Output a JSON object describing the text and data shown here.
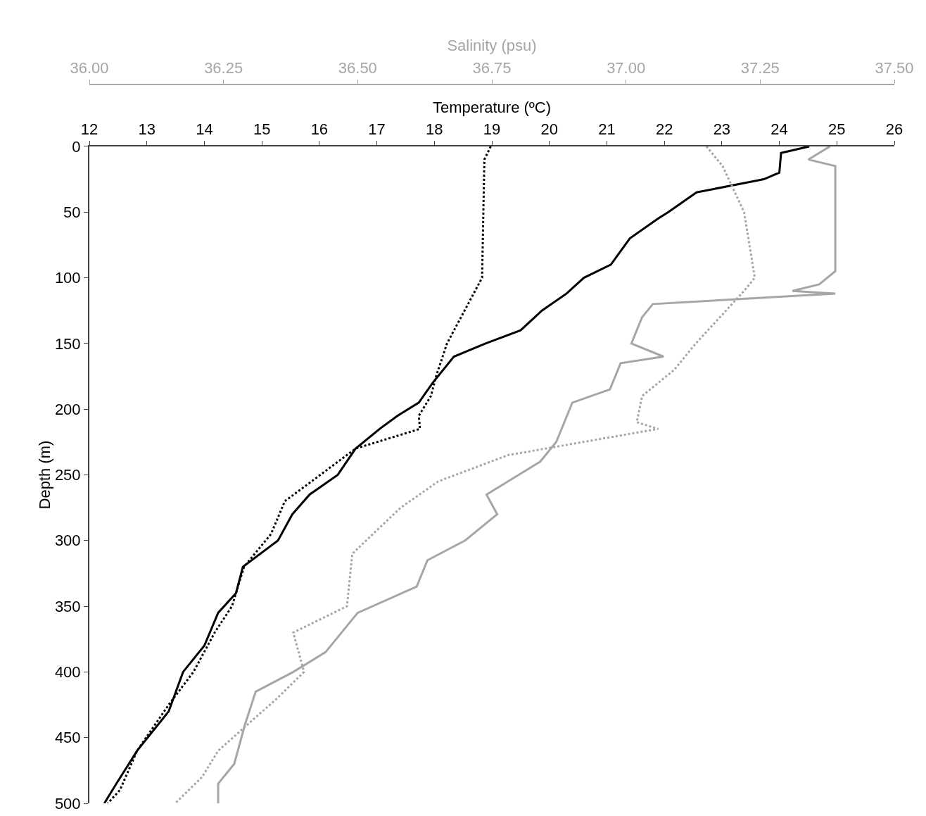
{
  "chart_data": {
    "type": "line",
    "xlabel": "Temperature (ºC)",
    "x2label": "Salinity (psu)",
    "ylabel": "Depth (m)",
    "xlim": [
      12,
      26
    ],
    "xticks": [
      12,
      13,
      14,
      15,
      16,
      17,
      18,
      19,
      20,
      21,
      22,
      23,
      24,
      25,
      26
    ],
    "x2lim": [
      36.0,
      37.5
    ],
    "x2ticks": [
      {
        "value": 36.0,
        "label": "36.00"
      },
      {
        "value": 36.25,
        "label": "36.25"
      },
      {
        "value": 36.5,
        "label": "36.50"
      },
      {
        "value": 36.75,
        "label": "36.75"
      },
      {
        "value": 37.0,
        "label": "37.00"
      },
      {
        "value": 37.25,
        "label": "37.25"
      },
      {
        "value": 37.5,
        "label": "37.50"
      }
    ],
    "ylim": [
      500,
      0
    ],
    "yticks": [
      0,
      50,
      100,
      150,
      200,
      250,
      300,
      350,
      400,
      450,
      500
    ],
    "marker": "none",
    "series": [
      {
        "color": "#000000",
        "line_style": "solid",
        "x": [
          24.52,
          24.03,
          24.0,
          23.73,
          22.56,
          22.07,
          21.89,
          21.4,
          21.07,
          20.6,
          20.3,
          19.87,
          19.5,
          18.89,
          18.34,
          17.97,
          17.73,
          17.36,
          17.05,
          16.63,
          16.32,
          15.83,
          15.53,
          15.28,
          14.67,
          14.55,
          14.24,
          14.0,
          13.63,
          13.38,
          12.83,
          12.47,
          12.26
        ],
        "values": [
          0,
          5,
          20,
          25,
          35,
          50,
          55,
          70,
          90,
          100,
          112,
          125,
          140,
          150,
          160,
          180,
          195,
          205,
          215,
          230,
          250,
          265,
          280,
          300,
          320,
          340,
          355,
          380,
          400,
          430,
          460,
          485,
          500
        ]
      },
      {
        "color": "#000000",
        "line_style": "dotted",
        "x": [
          18.98,
          18.87,
          18.83,
          18.22,
          18.03,
          17.94,
          17.73,
          17.75,
          16.63,
          15.71,
          15.4,
          15.16,
          14.69,
          14.48,
          14.18,
          13.81,
          13.38,
          12.83,
          12.53,
          12.32
        ],
        "values": [
          0,
          10,
          100,
          150,
          175,
          190,
          205,
          215,
          230,
          260,
          270,
          295,
          320,
          350,
          370,
          400,
          425,
          460,
          490,
          500
        ]
      },
      {
        "color": "#a6a6a6",
        "line_style": "solid",
        "axis": "x2",
        "x": [
          37.38,
          37.34,
          37.39,
          37.39,
          37.39,
          37.39,
          37.36,
          37.31,
          37.39,
          37.05,
          37.03,
          37.01,
          37.07,
          36.99,
          36.97,
          36.9,
          36.87,
          36.84,
          36.74,
          36.76,
          36.7,
          36.63,
          36.61,
          36.5,
          36.44,
          36.38,
          36.31,
          36.29,
          36.27,
          36.24,
          36.24
        ],
        "values": [
          0,
          10,
          15,
          30,
          60,
          95,
          105,
          110,
          112,
          120,
          130,
          150,
          160,
          165,
          185,
          195,
          225,
          240,
          265,
          280,
          300,
          315,
          335,
          355,
          385,
          400,
          415,
          440,
          470,
          485,
          500
        ]
      },
      {
        "color": "#a6a6a6",
        "line_style": "dotted",
        "axis": "x2",
        "x": [
          37.15,
          37.18,
          37.22,
          37.24,
          37.22,
          37.13,
          37.09,
          37.03,
          37.02,
          37.06,
          36.92,
          36.78,
          36.65,
          36.58,
          36.49,
          36.48,
          36.38,
          36.4,
          36.35,
          36.24,
          36.21,
          36.16
        ],
        "values": [
          0,
          15,
          50,
          100,
          110,
          150,
          170,
          190,
          210,
          215,
          225,
          235,
          255,
          275,
          310,
          350,
          370,
          400,
          420,
          460,
          480,
          500
        ]
      }
    ]
  }
}
